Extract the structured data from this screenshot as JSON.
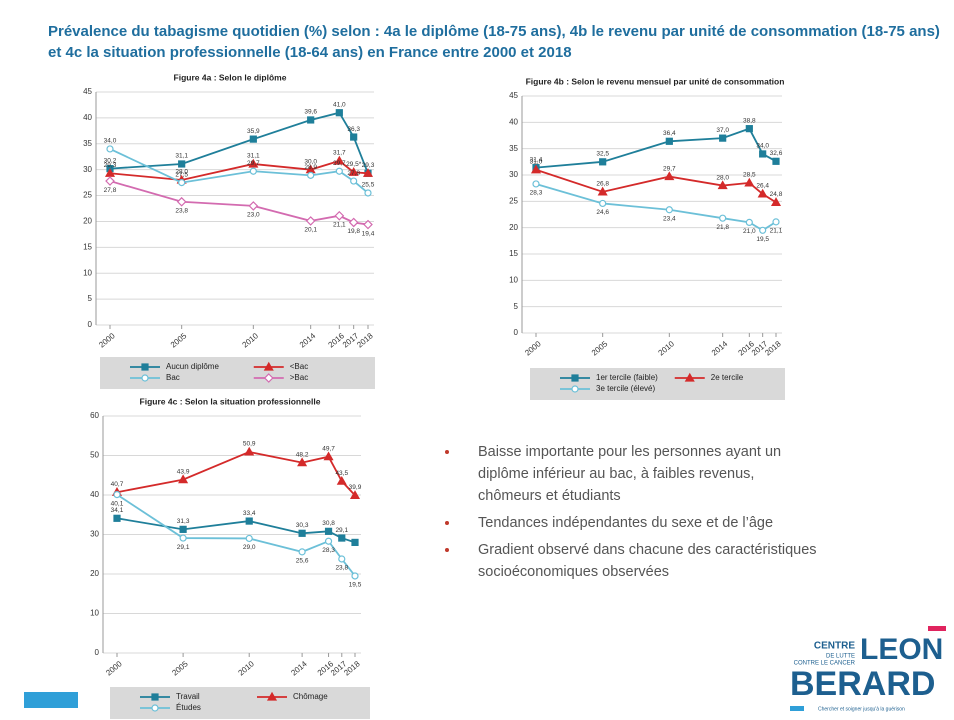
{
  "title_lines": [
    "Prévalence du tabagisme quotidien (%) selon : 4a le diplôme (18-75 ans), 4b le revenu par unité de consommation (18-75 ans)",
    "et 4c la situation professionnelle (18-64 ans) en France entre 2000 et 2018"
  ],
  "chart_data": [
    {
      "type": "line",
      "title": "Figure 4a : Selon le diplôme",
      "x": [
        2000,
        2005,
        2010,
        2014,
        2016,
        2017,
        2018
      ],
      "xlim": [
        2000,
        2018
      ],
      "xticks": [
        2000,
        2005,
        2010,
        2014,
        2016,
        2017,
        2018
      ],
      "ylim": [
        0,
        45
      ],
      "yticks": [
        0,
        5,
        10,
        15,
        20,
        25,
        30,
        35,
        40,
        45
      ],
      "grid": true,
      "series": [
        {
          "name": "Aucun diplôme",
          "color": "#1f7f9a",
          "marker": "square",
          "values": [
            30.2,
            31.1,
            35.9,
            39.6,
            41.0,
            36.3,
            29.3
          ],
          "value_labels": [
            "30,2",
            "31,1",
            "35,9",
            "39,6",
            "41,0",
            "36,3",
            null
          ]
        },
        {
          "name": "<Bac",
          "color": "#d42a2a",
          "marker": "triangle",
          "values": [
            29.3,
            28.0,
            31.1,
            30.0,
            31.7,
            29.5,
            29.3
          ],
          "value_labels": [
            "29,3",
            "28,0",
            "31,1",
            "30,0",
            "31,7",
            "29,5*",
            "29,3"
          ]
        },
        {
          "name": "Bac",
          "color": "#6cc0d8",
          "marker": "circle",
          "values": [
            34.0,
            27.5,
            29.7,
            28.9,
            29.7,
            27.8,
            25.5
          ],
          "value_labels": [
            "34,0",
            "27,5",
            "29,7",
            "28,9",
            "29,7",
            "27,8",
            "25,5"
          ]
        },
        {
          "name": ">Bac",
          "color": "#d36bb0",
          "marker": "diamond",
          "values": [
            27.8,
            23.8,
            23.0,
            20.1,
            21.1,
            19.8,
            19.4
          ],
          "value_labels": [
            "27,8",
            "23,8",
            "23,0",
            "20,1",
            "21,1",
            "19,8",
            "19,4"
          ]
        }
      ]
    },
    {
      "type": "line",
      "title": "Figure 4b : Selon le revenu mensuel par unité de consommation",
      "x": [
        2000,
        2005,
        2010,
        2014,
        2016,
        2017,
        2018
      ],
      "xlim": [
        2000,
        2018
      ],
      "xticks": [
        2000,
        2005,
        2010,
        2014,
        2016,
        2017,
        2018
      ],
      "ylim": [
        0,
        45
      ],
      "yticks": [
        0,
        5,
        10,
        15,
        20,
        25,
        30,
        35,
        40,
        45
      ],
      "grid": true,
      "series": [
        {
          "name": "1er tercile (faible)",
          "color": "#1f7f9a",
          "marker": "square",
          "values": [
            31.4,
            32.5,
            36.4,
            37.0,
            38.8,
            34.0,
            32.6
          ],
          "value_labels": [
            "31,4",
            "32,5",
            "36,4",
            "37,0",
            "38,8",
            "34,0",
            "32,6"
          ]
        },
        {
          "name": "2e tercile",
          "color": "#d42a2a",
          "marker": "triangle",
          "values": [
            31.0,
            26.8,
            29.7,
            28.0,
            28.5,
            26.4,
            24.8
          ],
          "value_labels": [
            "31,0",
            "26,8",
            "29,7",
            "28,0",
            "28,5",
            "26,4",
            "24,8"
          ]
        },
        {
          "name": "3e tercile (élevé)",
          "color": "#6cc0d8",
          "marker": "circle",
          "values": [
            28.3,
            24.6,
            23.4,
            21.8,
            21.0,
            19.5,
            21.1
          ],
          "value_labels": [
            "28,3",
            "24,6",
            "23,4",
            "21,8",
            "21,0",
            "19,5",
            "21,1"
          ]
        }
      ]
    },
    {
      "type": "line",
      "title": "Figure 4c : Selon la situation professionnelle",
      "x": [
        2000,
        2005,
        2010,
        2014,
        2016,
        2017,
        2018
      ],
      "xlim": [
        2000,
        2018
      ],
      "xticks": [
        2000,
        2005,
        2010,
        2014,
        2016,
        2017,
        2018
      ],
      "ylim": [
        0,
        60
      ],
      "yticks": [
        0,
        10,
        20,
        30,
        40,
        50,
        60
      ],
      "grid": true,
      "series": [
        {
          "name": "Travail",
          "color": "#1f7f9a",
          "marker": "square",
          "values": [
            34.1,
            31.3,
            33.4,
            30.3,
            30.8,
            29.1,
            28.0
          ],
          "value_labels": [
            "34,1",
            "31,3",
            "33,4",
            "30,3",
            "30,8",
            "29,1",
            null
          ]
        },
        {
          "name": "Chômage",
          "color": "#d42a2a",
          "marker": "triangle",
          "values": [
            40.7,
            43.9,
            50.9,
            48.2,
            49.7,
            43.5,
            39.9
          ],
          "value_labels": [
            "40,7",
            "43,9",
            "50,9",
            "48,2",
            "49,7",
            "43,5",
            "39,9"
          ]
        },
        {
          "name": "Études",
          "color": "#6cc0d8",
          "marker": "circle",
          "values": [
            40.1,
            29.1,
            29.0,
            25.6,
            28.3,
            23.8,
            19.5
          ],
          "value_labels": [
            "40,1",
            "29,1",
            "29,0",
            "25,6",
            "28,3",
            "23,8",
            "19,5"
          ]
        }
      ]
    }
  ],
  "bullets": [
    [
      "Baisse importante pour les personnes ayant un",
      "diplôme inférieur au bac, à faibles revenus,",
      "chômeurs et étudiants"
    ],
    [
      "Tendances indépendantes du sexe et de l’âge"
    ],
    [
      "Gradient observé dans chacune des caractéristiques",
      "socioéconomiques observées"
    ]
  ],
  "logo": {
    "line1": "CENTRE",
    "line2": "DE LUTTE",
    "line3": "CONTRE LE CANCER",
    "name1": "LEON",
    "name2": "BERARD",
    "tagline": "Chercher et soigner jusqu'à la guérison"
  }
}
